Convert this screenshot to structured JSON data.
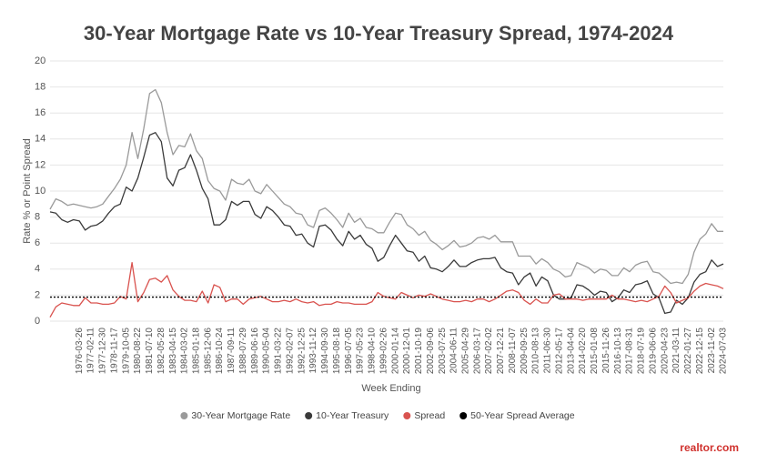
{
  "chart_data": {
    "type": "line",
    "title": "30-Year Mortgage Rate vs 10-Year Treasury Spread, 1974-2024",
    "y_label": "Rate % or Point Spread",
    "x_label": "Week Ending",
    "logo": "realtor.com",
    "ylim": [
      0,
      20
    ],
    "yticks": [
      0,
      2,
      4,
      6,
      8,
      10,
      12,
      14,
      16,
      18,
      20
    ],
    "grid": true,
    "legend": "bottom",
    "categories": [
      null,
      null,
      null,
      null,
      null,
      "1976-03-26",
      null,
      "1977-02-11",
      null,
      "1977-12-30",
      null,
      "1978-11-17",
      null,
      "1979-10-05",
      null,
      "1980-08-22",
      null,
      "1981-07-10",
      null,
      "1982-05-28",
      null,
      "1983-04-15",
      null,
      "1984-03-02",
      null,
      "1985-01-18",
      null,
      "1985-12-06",
      null,
      "1986-10-24",
      null,
      "1987-09-11",
      null,
      "1988-07-29",
      null,
      "1989-06-16",
      null,
      "1990-05-04",
      null,
      "1991-03-22",
      null,
      "1992-02-07",
      null,
      "1992-12-25",
      null,
      "1993-11-12",
      null,
      "1994-09-30",
      null,
      "1995-08-18",
      null,
      "1996-07-05",
      null,
      "1997-05-23",
      null,
      "1998-04-10",
      null,
      "1999-02-26",
      null,
      "2000-01-14",
      null,
      "2000-12-01",
      null,
      "2001-10-19",
      null,
      "2002-09-06",
      null,
      "2003-07-25",
      null,
      "2004-06-11",
      null,
      "2005-04-29",
      null,
      "2006-03-17",
      null,
      "2007-02-02",
      null,
      "2007-12-21",
      null,
      "2008-11-07",
      null,
      "2009-09-25",
      null,
      "2010-08-13",
      null,
      "2011-06-30",
      null,
      "2012-05-17",
      null,
      "2013-04-04",
      null,
      "2014-02-20",
      null,
      "2015-01-08",
      null,
      "2015-11-26",
      null,
      "2016-10-13",
      null,
      "2017-08-31",
      null,
      "2018-07-19",
      null,
      "2019-06-06",
      null,
      "2020-04-23",
      null,
      "2021-03-11",
      null,
      "2022-01-27",
      null,
      "2022-12-15",
      null,
      "2023-11-02",
      null,
      "2024-07-03"
    ],
    "series": [
      {
        "name": "30-Year Mortgage Rate",
        "color": "#9a9a9a",
        "values": [
          8.6,
          9.4,
          9.2,
          8.9,
          9.0,
          8.9,
          8.8,
          8.7,
          8.8,
          9.0,
          9.6,
          10.2,
          10.9,
          12.0,
          14.5,
          12.5,
          14.8,
          17.5,
          17.8,
          16.8,
          14.5,
          12.8,
          13.5,
          13.4,
          14.4,
          13.1,
          12.5,
          10.8,
          10.2,
          10.0,
          9.3,
          10.9,
          10.6,
          10.5,
          10.9,
          10.0,
          9.8,
          10.5,
          10.0,
          9.5,
          9.0,
          8.8,
          8.3,
          8.2,
          7.4,
          7.2,
          8.5,
          8.7,
          8.3,
          7.8,
          7.2,
          8.3,
          7.6,
          7.9,
          7.2,
          7.1,
          6.8,
          6.8,
          7.6,
          8.3,
          8.2,
          7.4,
          7.1,
          6.6,
          6.9,
          6.2,
          5.9,
          5.5,
          5.8,
          6.2,
          5.7,
          5.8,
          6.0,
          6.4,
          6.5,
          6.3,
          6.6,
          6.1,
          6.1,
          6.1,
          5.0,
          5.0,
          5.0,
          4.4,
          4.8,
          4.5,
          4.0,
          3.8,
          3.4,
          3.5,
          4.5,
          4.3,
          4.1,
          3.7,
          4.0,
          3.9,
          3.5,
          3.5,
          4.1,
          3.8,
          4.3,
          4.5,
          4.6,
          3.8,
          3.7,
          3.3,
          2.9,
          3.0,
          2.9,
          3.6,
          5.3,
          6.3,
          6.7,
          7.5,
          6.9,
          6.9
        ]
      },
      {
        "name": "10-Year Treasury",
        "color": "#3a3a3a",
        "values": [
          8.4,
          8.3,
          7.8,
          7.6,
          7.8,
          7.7,
          7.0,
          7.3,
          7.4,
          7.7,
          8.3,
          8.8,
          9.0,
          10.3,
          10.0,
          11.0,
          12.6,
          14.3,
          14.5,
          13.8,
          11.0,
          10.4,
          11.6,
          11.8,
          12.8,
          11.6,
          10.2,
          9.4,
          7.4,
          7.4,
          7.8,
          9.2,
          8.9,
          9.2,
          9.2,
          8.2,
          7.9,
          8.8,
          8.5,
          8.0,
          7.4,
          7.3,
          6.6,
          6.7,
          6.0,
          5.7,
          7.3,
          7.4,
          7.0,
          6.3,
          5.8,
          6.9,
          6.3,
          6.6,
          5.9,
          5.6,
          4.6,
          4.9,
          5.8,
          6.6,
          6.0,
          5.4,
          5.3,
          4.6,
          5.0,
          4.1,
          4.0,
          3.8,
          4.2,
          4.7,
          4.2,
          4.2,
          4.5,
          4.7,
          4.8,
          4.8,
          4.9,
          4.1,
          3.8,
          3.7,
          2.8,
          3.4,
          3.7,
          2.7,
          3.4,
          3.1,
          2.0,
          1.7,
          1.7,
          1.8,
          2.8,
          2.7,
          2.4,
          2.0,
          2.3,
          2.2,
          1.5,
          1.8,
          2.4,
          2.2,
          2.8,
          2.9,
          3.1,
          2.1,
          1.8,
          0.6,
          0.7,
          1.6,
          1.3,
          1.8,
          3.0,
          3.6,
          3.8,
          4.7,
          4.2,
          4.4
        ]
      },
      {
        "name": "Spread",
        "color": "#d9534f",
        "values": [
          0.3,
          1.1,
          1.4,
          1.3,
          1.2,
          1.2,
          1.8,
          1.4,
          1.4,
          1.3,
          1.3,
          1.4,
          1.9,
          1.7,
          4.5,
          1.5,
          2.2,
          3.2,
          3.3,
          3.0,
          3.5,
          2.4,
          1.9,
          1.6,
          1.6,
          1.5,
          2.3,
          1.4,
          2.8,
          2.6,
          1.5,
          1.7,
          1.7,
          1.3,
          1.7,
          1.8,
          1.9,
          1.7,
          1.5,
          1.5,
          1.6,
          1.5,
          1.7,
          1.5,
          1.4,
          1.5,
          1.2,
          1.3,
          1.3,
          1.5,
          1.4,
          1.4,
          1.3,
          1.3,
          1.3,
          1.5,
          2.2,
          1.9,
          1.8,
          1.7,
          2.2,
          2.0,
          1.8,
          2.0,
          1.9,
          2.1,
          1.9,
          1.7,
          1.6,
          1.5,
          1.5,
          1.6,
          1.5,
          1.7,
          1.7,
          1.5,
          1.7,
          2.0,
          2.3,
          2.4,
          2.2,
          1.6,
          1.3,
          1.7,
          1.4,
          1.4,
          2.0,
          2.1,
          1.7,
          1.7,
          1.7,
          1.6,
          1.7,
          1.7,
          1.7,
          1.7,
          2.0,
          1.7,
          1.7,
          1.6,
          1.5,
          1.6,
          1.5,
          1.7,
          1.9,
          2.7,
          2.2,
          1.4,
          1.6,
          1.8,
          2.3,
          2.7,
          2.9,
          2.8,
          2.7,
          2.5
        ]
      }
    ],
    "reference_lines": [
      {
        "name": "50-Year Spread Average",
        "value": 1.85,
        "color": "#000000",
        "style": "dotted"
      }
    ]
  }
}
